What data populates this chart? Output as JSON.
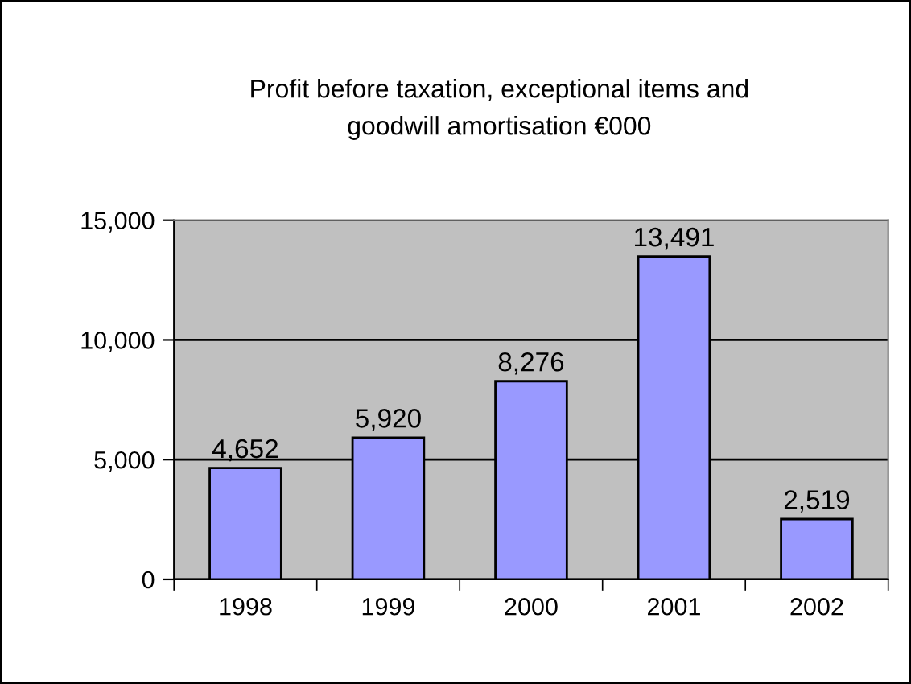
{
  "chart_data": {
    "type": "bar",
    "title": "Profit before taxation, exceptional items and\ngoodwill amortisation €000",
    "categories": [
      "1998",
      "1999",
      "2000",
      "2001",
      "2002"
    ],
    "values": [
      4652,
      5920,
      8276,
      13491,
      2519
    ],
    "color": "#9999ff",
    "ylim": [
      0,
      15000
    ],
    "yticks": [
      {
        "value": 0,
        "label": "0"
      },
      {
        "value": 5000,
        "label": "5,000"
      },
      {
        "value": 10000,
        "label": "10,000"
      },
      {
        "value": 15000,
        "label": "15,000"
      }
    ],
    "value_labels": [
      "4,652",
      "5,920",
      "8,276",
      "13,491",
      "2,519"
    ],
    "grid": "y"
  }
}
